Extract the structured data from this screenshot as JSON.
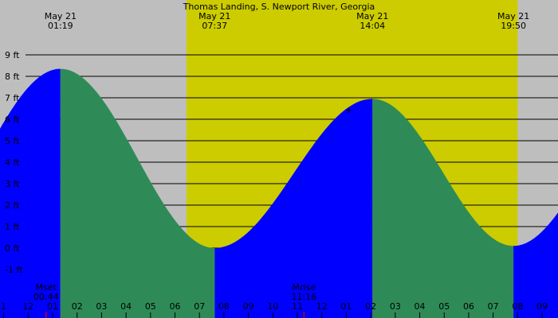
{
  "chart_data": {
    "type": "area",
    "title": "Thomas Landing, S. Newport River, Georgia",
    "xlabel": "",
    "ylabel": "",
    "unit": "ft",
    "ylim": [
      -1.4,
      9.5
    ],
    "xlim": [
      -0.15,
      22.65
    ],
    "y_ticks": [
      {
        "value": 9,
        "label": "9 ft"
      },
      {
        "value": 8,
        "label": "8 ft"
      },
      {
        "value": 7,
        "label": "7 ft"
      },
      {
        "value": 6,
        "label": "6 ft"
      },
      {
        "value": 5,
        "label": "5 ft"
      },
      {
        "value": 4,
        "label": "4 ft"
      },
      {
        "value": 3,
        "label": "3 ft"
      },
      {
        "value": 2,
        "label": "2 ft"
      },
      {
        "value": 1,
        "label": "1 ft"
      },
      {
        "value": 0,
        "label": "0 ft"
      },
      {
        "value": -1,
        "label": "-1 ft"
      }
    ],
    "x_ticks": [
      {
        "value": 0,
        "label": "1"
      },
      {
        "value": 1,
        "label": "12"
      },
      {
        "value": 2,
        "label": "01"
      },
      {
        "value": 3,
        "label": "02"
      },
      {
        "value": 4,
        "label": "03"
      },
      {
        "value": 5,
        "label": "04"
      },
      {
        "value": 6,
        "label": "05"
      },
      {
        "value": 7,
        "label": "06"
      },
      {
        "value": 8,
        "label": "07"
      },
      {
        "value": 9,
        "label": "08"
      },
      {
        "value": 10,
        "label": "09"
      },
      {
        "value": 11,
        "label": "10"
      },
      {
        "value": 12,
        "label": "11"
      },
      {
        "value": 13,
        "label": "12"
      },
      {
        "value": 14,
        "label": "01"
      },
      {
        "value": 15,
        "label": "02"
      },
      {
        "value": 16,
        "label": "03"
      },
      {
        "value": 17,
        "label": "04"
      },
      {
        "value": 18,
        "label": "05"
      },
      {
        "value": 19,
        "label": "06"
      },
      {
        "value": 20,
        "label": "07"
      },
      {
        "value": 21,
        "label": "08"
      },
      {
        "value": 22,
        "label": "09"
      }
    ],
    "daylight": [
      7.47,
      21.0
    ],
    "extremes": [
      {
        "type": "high",
        "date": "May 21",
        "time": "01:19",
        "x": 2.32,
        "height": 8.35
      },
      {
        "type": "low",
        "date": "May 21",
        "time": "07:37",
        "x": 8.62,
        "height": 0.0
      },
      {
        "type": "high",
        "date": "May 21",
        "time": "14:04",
        "x": 15.07,
        "height": 6.95
      },
      {
        "type": "low",
        "date": "May 21",
        "time": "19:50",
        "x": 20.83,
        "height": 0.1
      }
    ],
    "curve_start": {
      "x": -0.15,
      "height": 6.0
    },
    "curve_end": {
      "x": 22.65,
      "height": 1.75
    },
    "moon_events": [
      {
        "label": "Mset",
        "time": "00:44",
        "x": 1.73
      },
      {
        "label": "Mrise",
        "time": "11:16",
        "x": 12.27
      }
    ],
    "colors": {
      "background": "#bebebe",
      "daylight": "#cccc00",
      "rising": "#0000ff",
      "falling": "#2e8b57",
      "gridline": "#000000",
      "tick_mark": "#cc0000"
    }
  }
}
